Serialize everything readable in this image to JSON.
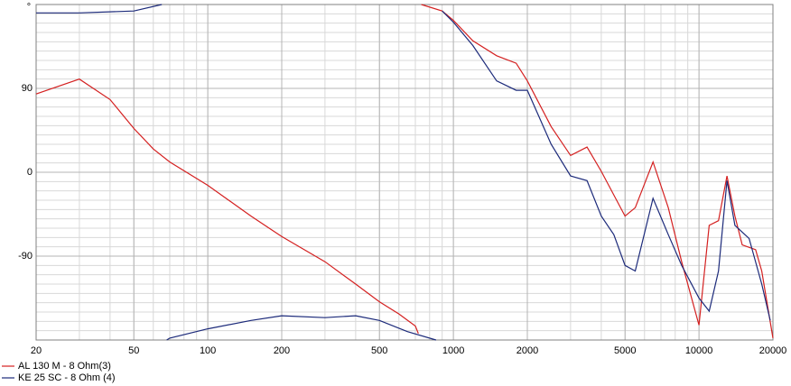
{
  "chart_data": {
    "type": "line",
    "y_label": "°",
    "xlog": true,
    "xlim": [
      20,
      20000
    ],
    "xticks": [
      20,
      50,
      100,
      200,
      500,
      1000,
      2000,
      5000,
      10000,
      20000
    ],
    "ylim": [
      -180,
      180
    ],
    "yticks": [
      -90,
      0,
      90
    ],
    "grid": true,
    "legend": "bottom-left",
    "series": [
      {
        "name": "AL 130 M - 8 Ohm(3)",
        "color": "#d42020",
        "x": [
          20,
          30,
          40,
          50,
          60,
          70,
          100,
          150,
          200,
          300,
          400,
          500,
          600,
          700,
          720,
          730,
          740,
          900,
          1000,
          1200,
          1500,
          1800,
          2000,
          2500,
          3000,
          3500,
          4000,
          5000,
          5500,
          6500,
          7500,
          8500,
          10000,
          11000,
          12000,
          13000,
          14000,
          15000,
          17000,
          18000,
          20000
        ],
        "values": [
          84,
          100,
          78,
          47,
          25,
          11,
          -14,
          -47,
          -69,
          -96,
          -120,
          -139,
          -152,
          -165,
          -173,
          null,
          180,
          173,
          163,
          141,
          125,
          117,
          98,
          49,
          18,
          27,
          1,
          -47,
          -38,
          11,
          -38,
          -96,
          -164,
          -57,
          -52,
          -4,
          -47,
          -78,
          -83,
          -106,
          -178
        ]
      },
      {
        "name": "KE 25 SC - 8 Ohm   (4)",
        "color": "#1c2a7a",
        "x": [
          20,
          30,
          50,
          65,
          66,
          68,
          70,
          100,
          150,
          200,
          300,
          400,
          500,
          650,
          850,
          860,
          900,
          1000,
          1200,
          1500,
          1800,
          2000,
          2500,
          3000,
          3500,
          4000,
          4500,
          5000,
          5500,
          6500,
          7500,
          8500,
          10000,
          11000,
          12000,
          13000,
          14000,
          16000,
          18000,
          19500,
          19800,
          20000
        ],
        "values": [
          171,
          171,
          173,
          180,
          null,
          -180,
          -178,
          -168,
          -159,
          -154,
          -156,
          -154,
          -159,
          -171,
          -180,
          null,
          173,
          161,
          136,
          98,
          88,
          88,
          30,
          -4,
          -9,
          -47,
          -67,
          -100,
          -106,
          -28,
          -67,
          -100,
          -135,
          -149,
          -106,
          -9,
          -57,
          -71,
          -120,
          -159,
          null,
          131
        ]
      }
    ]
  }
}
